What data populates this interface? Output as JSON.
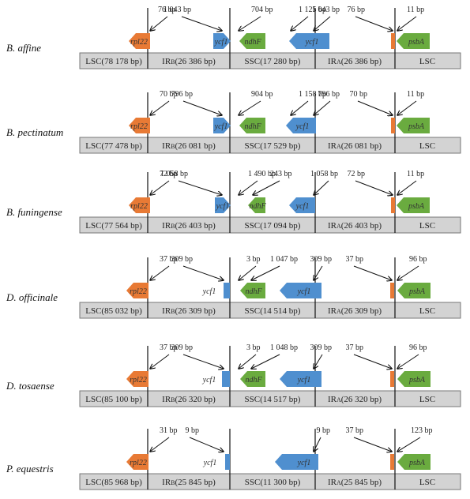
{
  "colors": {
    "rpl22": "#e87a35",
    "ycf1": "#4f8fcf",
    "ndhF": "#6aab3f",
    "psbA": "#6aab3f",
    "track": "#d3d3d3",
    "line": "#111111"
  },
  "species": [
    {
      "name": "B. affine",
      "regions": [
        "LSC(78 178 bp)",
        "IRB(26 386 bp)",
        "SSC(17 280 bp)",
        "IRA(26 386 bp)",
        "LSC"
      ],
      "annotations": [
        "76 bp",
        "1 043 bp",
        "704 bp",
        "1 125 bp",
        "1 043 bp",
        "76 bp",
        "11 bp"
      ],
      "genes": [
        "rpl22",
        "ycf1",
        "ndhF",
        "ycf1",
        "psbA"
      ]
    },
    {
      "name": "B. pectinatum",
      "regions": [
        "LSC(77 478 bp)",
        "IRB(26 081 bp)",
        "SSC(17 529 bp)",
        "IRA(26 081 bp)",
        "LSC"
      ],
      "annotations": [
        "70 bp",
        "796 bp",
        "904 bp",
        "1 158 bp",
        "796 bp",
        "70 bp",
        "11 bp"
      ],
      "genes": [
        "rpl22",
        "ycf1",
        "ndhF",
        "ycf1",
        "psbA"
      ]
    },
    {
      "name": "B. funingense",
      "regions": [
        "LSC(77 564 bp)",
        "IRB(26 403 bp)",
        "SSC(17 094 bp)",
        "IRA(26 403 bp)",
        "LSC"
      ],
      "annotations": [
        "72 bp",
        "1 058 bp",
        "1 490 bp",
        "243 bp",
        "1 058 bp",
        "72 bp",
        "11 bp"
      ],
      "genes": [
        "rpl22",
        "ycf1",
        "ndhF",
        "ycf1",
        "psbA"
      ]
    },
    {
      "name": "D. officinale",
      "regions": [
        "LSC(85 032 bp)",
        "IRB(26 309 bp)",
        "SSC(14 514 bp)",
        "IRA(26 309 bp)",
        "LSC"
      ],
      "annotations": [
        "37 bp",
        "309 bp",
        "3 bp",
        "1 047 bp",
        "309 bp",
        "37 bp",
        "96 bp"
      ],
      "genes": [
        "rpl22",
        "ycf1",
        "ndhF",
        "ycf1",
        "psbA"
      ]
    },
    {
      "name": "D. tosaense",
      "regions": [
        "LSC(85 100 bp)",
        "IRB(26 320 bp)",
        "SSC(14 517 bp)",
        "IRA(26 320 bp)",
        "LSC"
      ],
      "annotations": [
        "37 bp",
        "309 bp",
        "3 bp",
        "1 048 bp",
        "309 bp",
        "37 bp",
        "96 bp"
      ],
      "genes": [
        "rpl22",
        "ycf1",
        "ndhF",
        "ycf1",
        "psbA"
      ]
    },
    {
      "name": "P. equestris",
      "regions": [
        "LSC(85 968 bp)",
        "IRB(25 845 bp)",
        "SSC(11 300 bp)",
        "IRA(25 845 bp)",
        "LSC"
      ],
      "annotations": [
        "31 bp",
        "9 bp",
        "9 bp",
        "37 bp",
        "123 bp"
      ],
      "genes": [
        "rpl22",
        "ycf1",
        "ycf1",
        "psbA"
      ]
    }
  ]
}
